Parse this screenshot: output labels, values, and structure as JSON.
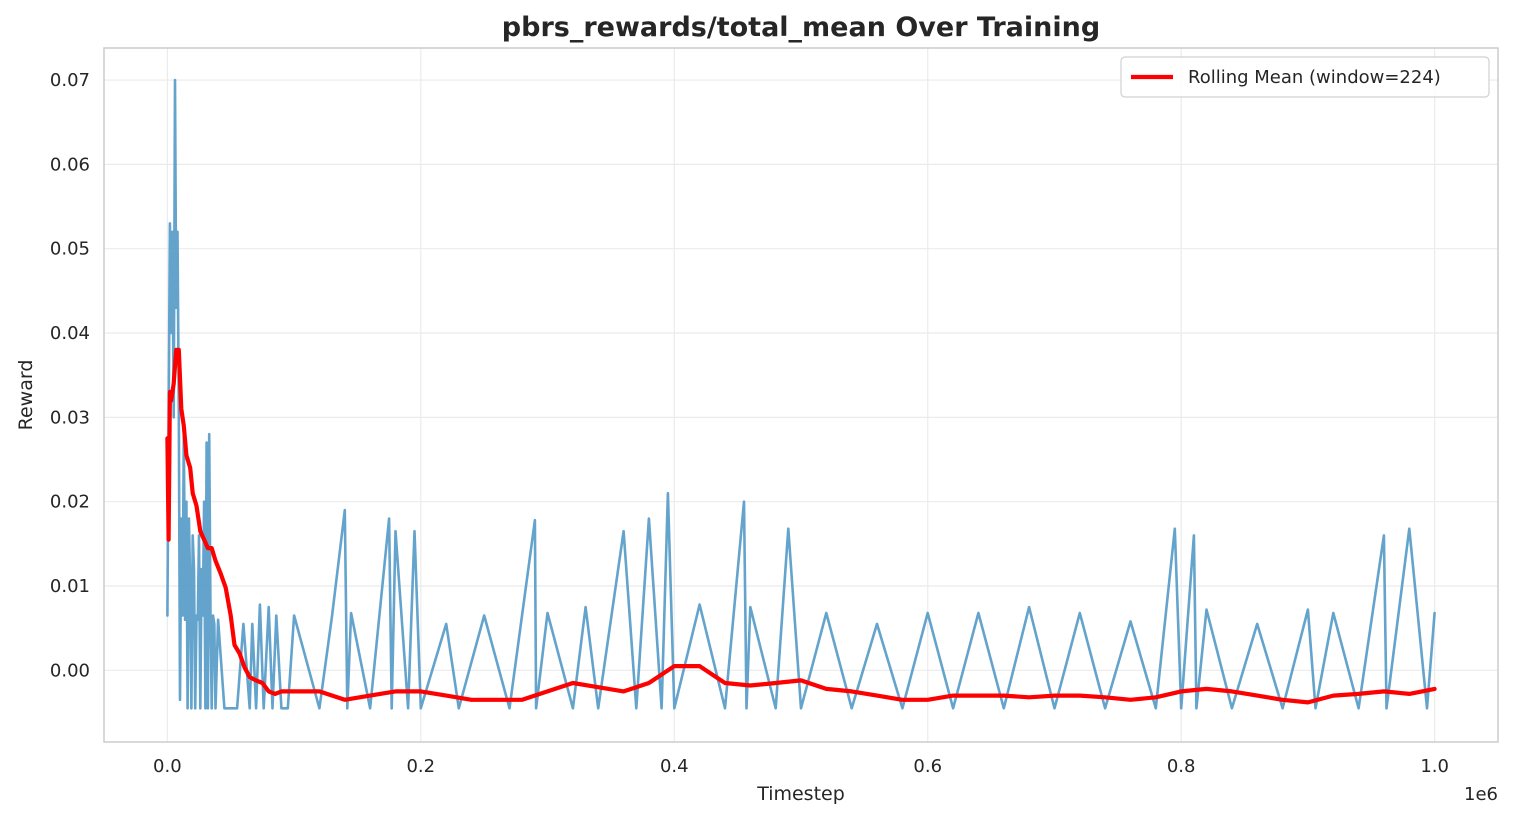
{
  "chart_data": {
    "type": "line",
    "title": "pbrs_rewards/total_mean Over Training",
    "xlabel": "Timestep",
    "ylabel": "Reward",
    "x_offset_label": "1e6",
    "xlim": [
      -0.05,
      1.05
    ],
    "ylim": [
      -0.0085,
      0.0738
    ],
    "x_scale_factor": 1000000,
    "xticks": [
      0.0,
      0.2,
      0.4,
      0.6,
      0.8,
      1.0
    ],
    "xtick_labels": [
      "0.0",
      "0.2",
      "0.4",
      "0.6",
      "0.8",
      "1.0"
    ],
    "yticks": [
      0.0,
      0.01,
      0.02,
      0.03,
      0.04,
      0.05,
      0.06,
      0.07
    ],
    "ytick_labels": [
      "0.00",
      "0.01",
      "0.02",
      "0.03",
      "0.04",
      "0.05",
      "0.06",
      "0.07"
    ],
    "grid": true,
    "legend_position": "top-right",
    "colors": {
      "raw": "#5b9ec9",
      "rolling": "#ff0000",
      "grid": "#ebebeb",
      "frame": "#cccccc"
    },
    "series": [
      {
        "name": "",
        "role": "raw",
        "x": [
          0.0,
          0.002,
          0.003,
          0.004,
          0.005,
          0.006,
          0.007,
          0.008,
          0.009,
          0.01,
          0.011,
          0.012,
          0.013,
          0.014,
          0.015,
          0.016,
          0.017,
          0.018,
          0.019,
          0.02,
          0.021,
          0.022,
          0.023,
          0.024,
          0.025,
          0.026,
          0.027,
          0.028,
          0.029,
          0.03,
          0.031,
          0.032,
          0.033,
          0.034,
          0.035,
          0.036,
          0.037,
          0.038,
          0.04,
          0.045,
          0.05,
          0.055,
          0.06,
          0.065,
          0.067,
          0.07,
          0.073,
          0.076,
          0.08,
          0.083,
          0.086,
          0.09,
          0.095,
          0.1,
          0.12,
          0.13,
          0.14,
          0.142,
          0.145,
          0.16,
          0.175,
          0.177,
          0.18,
          0.19,
          0.195,
          0.2,
          0.22,
          0.23,
          0.25,
          0.27,
          0.29,
          0.291,
          0.3,
          0.32,
          0.33,
          0.34,
          0.36,
          0.37,
          0.38,
          0.39,
          0.395,
          0.4,
          0.42,
          0.44,
          0.455,
          0.457,
          0.46,
          0.48,
          0.49,
          0.5,
          0.52,
          0.54,
          0.56,
          0.58,
          0.6,
          0.62,
          0.64,
          0.66,
          0.68,
          0.7,
          0.72,
          0.74,
          0.76,
          0.78,
          0.795,
          0.8,
          0.81,
          0.812,
          0.82,
          0.84,
          0.86,
          0.88,
          0.9,
          0.906,
          0.92,
          0.94,
          0.96,
          0.962,
          0.98,
          0.994,
          1.0
        ],
        "y": [
          0.0065,
          0.053,
          0.04,
          0.052,
          0.03,
          0.07,
          0.043,
          0.052,
          0.031,
          -0.0035,
          0.018,
          0.0065,
          0.028,
          0.006,
          0.02,
          -0.0045,
          0.018,
          0.01,
          -0.0045,
          0.016,
          0.012,
          -0.0045,
          0.0065,
          0.006,
          0.016,
          -0.0045,
          0.012,
          0.0065,
          0.02,
          -0.0045,
          0.027,
          -0.0045,
          0.028,
          0.0065,
          -0.0045,
          0.0065,
          0.0055,
          -0.0045,
          0.006,
          -0.0045,
          -0.0045,
          -0.0045,
          0.0055,
          -0.0045,
          0.0055,
          -0.0045,
          0.0078,
          -0.0045,
          0.0075,
          -0.0045,
          0.0065,
          -0.0045,
          -0.0045,
          0.0065,
          -0.0045,
          0.0065,
          0.019,
          -0.0045,
          0.0068,
          -0.0045,
          0.018,
          -0.0045,
          0.0165,
          -0.0045,
          0.0165,
          -0.0045,
          0.0055,
          -0.0045,
          0.0065,
          -0.0045,
          0.0178,
          -0.0045,
          0.0068,
          -0.0045,
          0.0075,
          -0.0045,
          0.0165,
          -0.0045,
          0.018,
          -0.0045,
          0.021,
          -0.0045,
          0.0078,
          -0.0045,
          0.02,
          -0.0045,
          0.0075,
          -0.0045,
          0.0168,
          -0.0045,
          0.0068,
          -0.0045,
          0.0055,
          -0.0045,
          0.0068,
          -0.0045,
          0.0068,
          -0.0045,
          0.0075,
          -0.0045,
          0.0068,
          -0.0045,
          0.0058,
          -0.0045,
          0.0168,
          -0.0045,
          0.016,
          -0.0045,
          0.0072,
          -0.0045,
          0.0055,
          -0.0045,
          0.0072,
          -0.0045,
          0.0068,
          -0.0045,
          0.016,
          -0.0045,
          0.0168,
          -0.0045,
          0.0068
        ]
      },
      {
        "name": "Rolling Mean (window=224)",
        "role": "rolling",
        "x": [
          0.0,
          0.001,
          0.002,
          0.003,
          0.005,
          0.007,
          0.009,
          0.011,
          0.013,
          0.015,
          0.018,
          0.02,
          0.023,
          0.026,
          0.029,
          0.032,
          0.035,
          0.038,
          0.042,
          0.046,
          0.05,
          0.053,
          0.057,
          0.061,
          0.065,
          0.07,
          0.075,
          0.08,
          0.085,
          0.09,
          0.1,
          0.12,
          0.14,
          0.16,
          0.18,
          0.2,
          0.22,
          0.24,
          0.26,
          0.28,
          0.3,
          0.32,
          0.34,
          0.36,
          0.38,
          0.4,
          0.42,
          0.44,
          0.46,
          0.48,
          0.5,
          0.52,
          0.54,
          0.56,
          0.58,
          0.6,
          0.62,
          0.64,
          0.66,
          0.68,
          0.7,
          0.72,
          0.74,
          0.76,
          0.78,
          0.8,
          0.82,
          0.84,
          0.86,
          0.88,
          0.9,
          0.92,
          0.94,
          0.96,
          0.98,
          1.0
        ],
        "y": [
          0.0275,
          0.0155,
          0.033,
          0.032,
          0.034,
          0.038,
          0.038,
          0.031,
          0.029,
          0.0255,
          0.024,
          0.021,
          0.0195,
          0.0165,
          0.0155,
          0.0145,
          0.0145,
          0.013,
          0.0115,
          0.0098,
          0.0065,
          0.003,
          0.002,
          0.0003,
          -0.0008,
          -0.0012,
          -0.0015,
          -0.0025,
          -0.0028,
          -0.0025,
          -0.0025,
          -0.0025,
          -0.0035,
          -0.003,
          -0.0025,
          -0.0025,
          -0.003,
          -0.0035,
          -0.0035,
          -0.0035,
          -0.0025,
          -0.0015,
          -0.002,
          -0.0025,
          -0.0015,
          0.0005,
          0.0005,
          -0.0015,
          -0.0018,
          -0.0015,
          -0.0012,
          -0.0022,
          -0.0025,
          -0.003,
          -0.0035,
          -0.0035,
          -0.003,
          -0.003,
          -0.003,
          -0.0032,
          -0.003,
          -0.003,
          -0.0032,
          -0.0035,
          -0.0032,
          -0.0025,
          -0.0022,
          -0.0025,
          -0.003,
          -0.0035,
          -0.0038,
          -0.003,
          -0.0028,
          -0.0025,
          -0.0028,
          -0.0022
        ]
      }
    ]
  }
}
